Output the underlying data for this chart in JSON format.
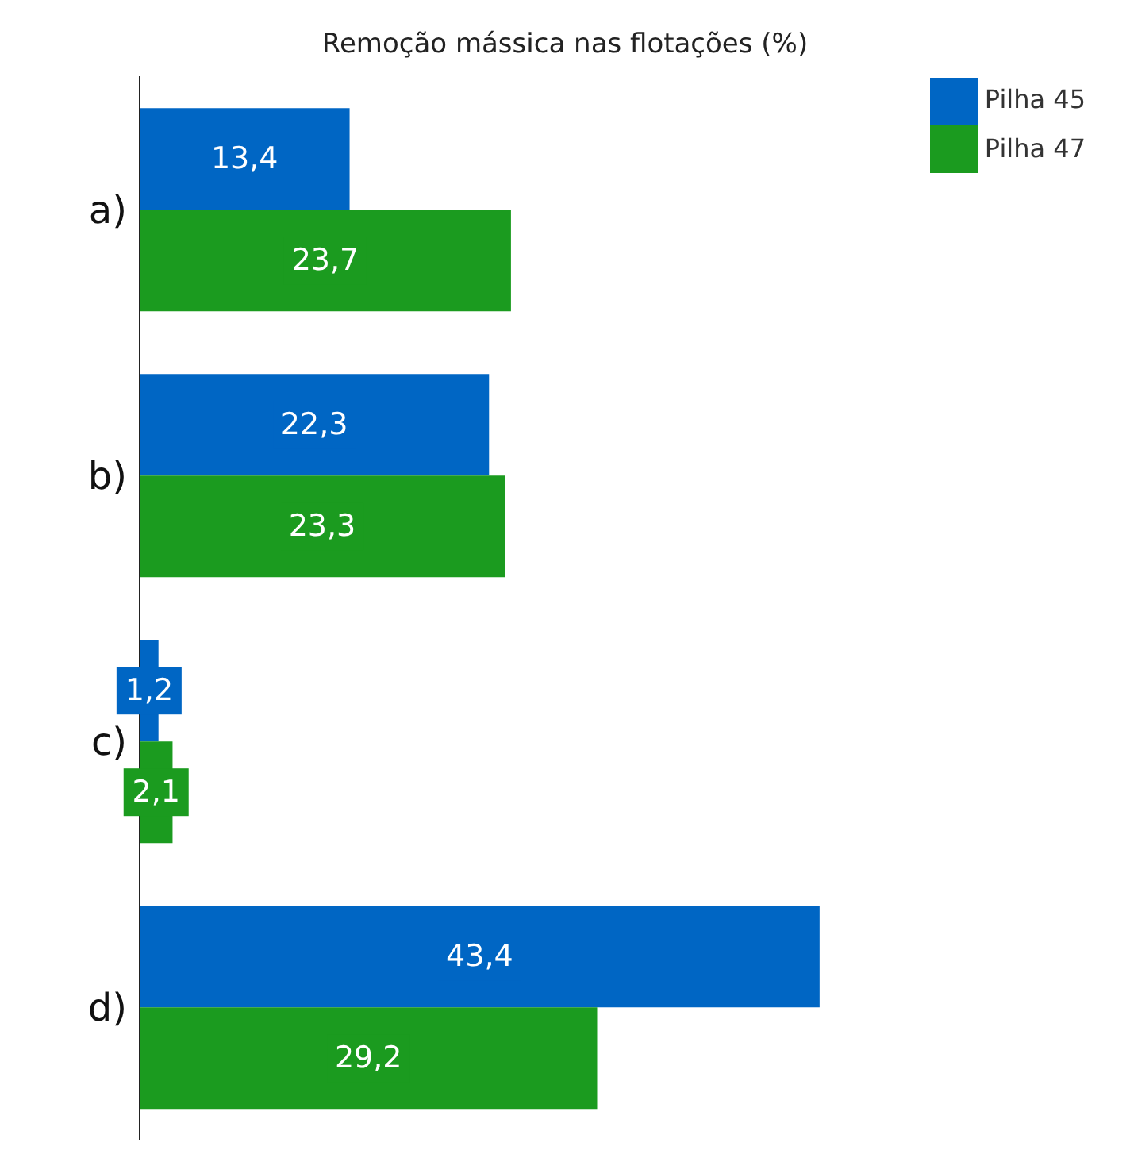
{
  "chart_data": {
    "type": "bar",
    "orientation": "horizontal",
    "title": "Remoção mássica nas flotações (%)",
    "categories": [
      "a)",
      "b)",
      "c)",
      "d)"
    ],
    "series": [
      {
        "name": "Pilha 45",
        "color": "#0066c4",
        "values": [
          13.4,
          22.3,
          1.2,
          43.4
        ],
        "value_labels": [
          "13,4",
          "22,3",
          "1,2",
          "43,4"
        ]
      },
      {
        "name": "Pilha 47",
        "color": "#1b9b1f",
        "values": [
          23.7,
          23.3,
          2.1,
          29.2
        ],
        "value_labels": [
          "23,7",
          "23,3",
          "2,1",
          "29,2"
        ]
      }
    ],
    "legend": "top right",
    "grid": false
  }
}
